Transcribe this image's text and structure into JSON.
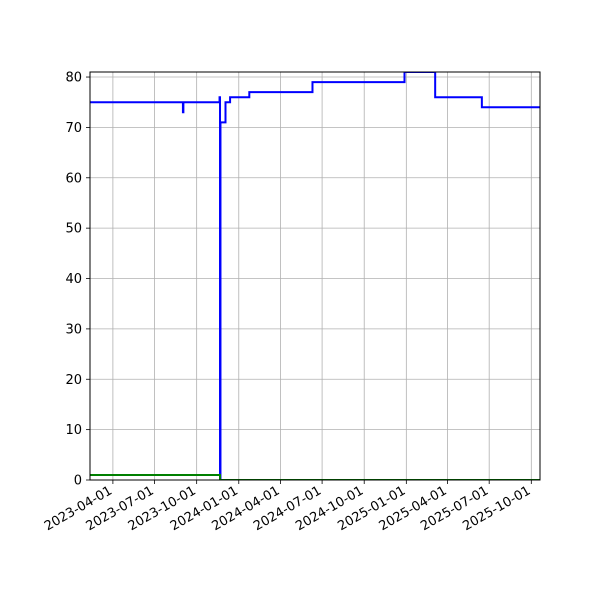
{
  "chart_data": {
    "type": "line",
    "title": "",
    "xlabel": "",
    "ylabel": "",
    "x_type": "date",
    "xlim": [
      "2023-02-10",
      "2025-10-20"
    ],
    "ylim": [
      0,
      81
    ],
    "grid": true,
    "x_ticks": [
      "2023-04-01",
      "2023-07-01",
      "2023-10-01",
      "2024-01-01",
      "2024-04-01",
      "2024-07-01",
      "2024-10-01",
      "2025-01-01",
      "2025-04-01",
      "2025-07-01",
      "2025-10-01"
    ],
    "y_ticks": [
      "0",
      "10",
      "20",
      "30",
      "40",
      "50",
      "60",
      "70",
      "80"
    ],
    "series": [
      {
        "color": "#0000ff",
        "step": true,
        "x": [
          "2023-02-10",
          "2023-09-01",
          "2023-09-01",
          "2023-09-02",
          "2023-09-02",
          "2023-11-20",
          "2023-11-20",
          "2023-11-21",
          "2023-11-21",
          "2023-11-22",
          "2023-11-22",
          "2023-11-25",
          "2023-11-25",
          "2023-12-03",
          "2023-12-03",
          "2023-12-13",
          "2023-12-13",
          "2024-01-24",
          "2024-01-24",
          "2024-06-10",
          "2024-06-10",
          "2024-12-28",
          "2024-12-28",
          "2025-03-05",
          "2025-03-05",
          "2025-06-15",
          "2025-06-15",
          "2025-10-20"
        ],
        "y": [
          75,
          75,
          73,
          73,
          75,
          75,
          76,
          76,
          0,
          0,
          71,
          71,
          71,
          71,
          75,
          75,
          76,
          76,
          77,
          77,
          79,
          79,
          81,
          81,
          76,
          76,
          74,
          74
        ]
      },
      {
        "color": "#008000",
        "step": true,
        "x": [
          "2023-02-10",
          "2023-11-21",
          "2023-11-21",
          "2025-10-20"
        ],
        "y": [
          1,
          1,
          0,
          0
        ]
      }
    ]
  }
}
